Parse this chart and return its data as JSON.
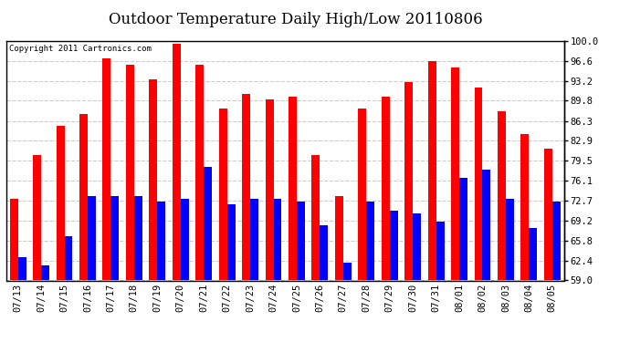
{
  "title": "Outdoor Temperature Daily High/Low 20110806",
  "copyright_text": "Copyright 2011 Cartronics.com",
  "ylabel_right_ticks": [
    59.0,
    62.4,
    65.8,
    69.2,
    72.7,
    76.1,
    79.5,
    82.9,
    86.3,
    89.8,
    93.2,
    96.6,
    100.0
  ],
  "ylim": [
    59.0,
    100.0
  ],
  "dates": [
    "07/13",
    "07/14",
    "07/15",
    "07/16",
    "07/17",
    "07/18",
    "07/19",
    "07/20",
    "07/21",
    "07/22",
    "07/23",
    "07/24",
    "07/25",
    "07/26",
    "07/27",
    "07/28",
    "07/29",
    "07/30",
    "07/31",
    "08/01",
    "08/02",
    "08/03",
    "08/04",
    "08/05"
  ],
  "highs": [
    73.0,
    80.5,
    85.5,
    87.5,
    97.0,
    96.0,
    93.5,
    99.5,
    96.0,
    88.5,
    91.0,
    90.0,
    90.5,
    80.5,
    73.5,
    88.5,
    90.5,
    93.0,
    96.5,
    95.5,
    92.0,
    88.0,
    84.0,
    81.5
  ],
  "lows": [
    63.0,
    61.5,
    66.5,
    73.5,
    73.5,
    73.5,
    72.5,
    73.0,
    78.5,
    72.0,
    73.0,
    73.0,
    72.5,
    68.5,
    62.0,
    72.5,
    71.0,
    70.5,
    69.0,
    76.5,
    78.0,
    73.0,
    68.0,
    72.5
  ],
  "high_color": "#ff0000",
  "low_color": "#0000ff",
  "background_color": "#ffffff",
  "grid_color": "#cccccc",
  "bar_width": 0.35,
  "title_fontsize": 12,
  "tick_fontsize": 7.5,
  "copyright_fontsize": 6.5
}
